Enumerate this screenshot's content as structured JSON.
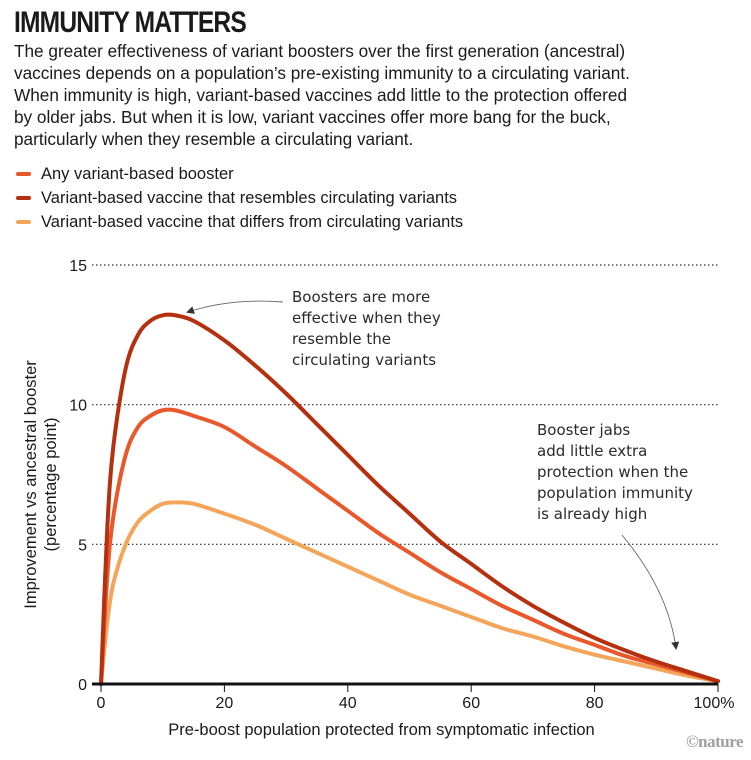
{
  "header": {
    "title": "IMMUNITY MATTERS",
    "subtitle_lines": [
      "The greater effectiveness of variant boosters over the first generation (ancestral)",
      "vaccines depends on a population’s pre-existing immunity to a circulating variant.",
      "When immunity is high, variant-based vaccines add little to the protection offered",
      "by older jabs. But when it is low, variant vaccines offer more bang for the buck,",
      "particularly when they resemble a circulating variant."
    ]
  },
  "credit": "©nature",
  "chart_data": {
    "type": "line",
    "title": "IMMUNITY MATTERS",
    "xlabel": "Pre-boost population protected from symptomatic infection",
    "ylabel_lines": [
      "Improvement vs ancestral booster",
      "(percentage point)"
    ],
    "xlim": [
      0,
      100
    ],
    "ylim": [
      0,
      15
    ],
    "xticks": [
      0,
      20,
      40,
      60,
      80,
      100
    ],
    "xtick_labels": [
      "0",
      "20",
      "40",
      "60",
      "80",
      "100%"
    ],
    "yticks": [
      0,
      5,
      10,
      15
    ],
    "ytick_labels": [
      "0",
      "5",
      "10",
      "15"
    ],
    "grid": "horizontal dotted",
    "legend_position": "top-left",
    "x": [
      0,
      1,
      2,
      4,
      6,
      8,
      10,
      12,
      15,
      20,
      25,
      30,
      35,
      40,
      45,
      50,
      55,
      60,
      65,
      70,
      75,
      80,
      85,
      90,
      95,
      100
    ],
    "series": [
      {
        "name": "Any variant-based booster",
        "color": "#e8582a",
        "values": [
          0,
          3.8,
          6.0,
          8.2,
          9.2,
          9.6,
          9.8,
          9.8,
          9.6,
          9.2,
          8.5,
          7.8,
          7.0,
          6.2,
          5.4,
          4.7,
          4.0,
          3.4,
          2.8,
          2.3,
          1.8,
          1.4,
          1.0,
          0.7,
          0.4,
          0.1
        ]
      },
      {
        "name": "Variant-based vaccine that resembles circulating variants",
        "color": "#b5300f",
        "values": [
          0,
          5.5,
          8.5,
          11.3,
          12.5,
          13.0,
          13.2,
          13.2,
          13.0,
          12.3,
          11.4,
          10.4,
          9.3,
          8.2,
          7.1,
          6.1,
          5.1,
          4.3,
          3.5,
          2.8,
          2.2,
          1.65,
          1.2,
          0.8,
          0.45,
          0.1
        ]
      },
      {
        "name": "Variant-based vaccine that differs from circulating variants",
        "color": "#f5a55a",
        "values": [
          0,
          2.2,
          3.6,
          5.0,
          5.8,
          6.2,
          6.45,
          6.5,
          6.45,
          6.1,
          5.7,
          5.2,
          4.7,
          4.2,
          3.7,
          3.2,
          2.8,
          2.4,
          2.0,
          1.7,
          1.35,
          1.05,
          0.8,
          0.55,
          0.3,
          0.1
        ]
      }
    ],
    "annotations": [
      {
        "lines": [
          "Boosters are more",
          "effective when they",
          "resemble the",
          "circulating variants"
        ],
        "points_to": {
          "x": 14,
          "y": 13.2
        }
      },
      {
        "lines": [
          "Booster jabs",
          "add little extra",
          "protection when the",
          "population immunity",
          "is already high"
        ],
        "points_to": {
          "x": 93,
          "y": 1.2
        }
      }
    ]
  }
}
